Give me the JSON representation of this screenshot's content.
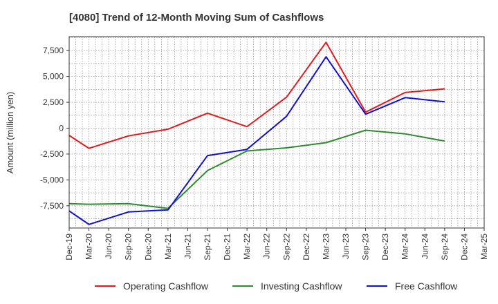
{
  "chart_data": {
    "type": "line",
    "title": "[4080]  Trend of 12-Month Moving Sum of Cashflows",
    "xlabel": "",
    "ylabel": "Amount (million yen)",
    "categories": [
      "Dec-19",
      "Mar-20",
      "Jun-20",
      "Sep-20",
      "Dec-20",
      "Mar-21",
      "Jun-21",
      "Sep-21",
      "Dec-21",
      "Mar-22",
      "Jun-22",
      "Sep-22",
      "Dec-22",
      "Mar-23",
      "Jun-23",
      "Sep-23",
      "Dec-23",
      "Mar-24",
      "Jun-24",
      "Sep-24",
      "Dec-24",
      "Mar-25"
    ],
    "ylim": [
      -9650,
      8850
    ],
    "yticks": [
      7500,
      5000,
      2500,
      0,
      -2500,
      -5000,
      -7500
    ],
    "ytick_labels": [
      "7,500",
      "5,000",
      "2,500",
      "0",
      "-2,500",
      "-5,000",
      "-7,500"
    ],
    "grid": true,
    "legend_position": "bottom",
    "series": [
      {
        "name": "Operating Cashflow",
        "color": "#e31a1c",
        "values": [
          -700,
          -1950,
          null,
          -750,
          null,
          -100,
          null,
          1450,
          null,
          150,
          null,
          3000,
          null,
          8300,
          null,
          1550,
          null,
          3450,
          null,
          3800,
          null,
          null
        ]
      },
      {
        "name": "Investing Cashflow",
        "color": "#2e8b2e",
        "values": [
          -7300,
          -7350,
          null,
          -7300,
          null,
          -7750,
          null,
          -4100,
          null,
          -2200,
          null,
          -1900,
          null,
          -1400,
          null,
          -200,
          null,
          -550,
          null,
          -1250,
          null,
          null
        ]
      },
      {
        "name": "Free Cashflow",
        "color": "#1010d0",
        "values": [
          -8000,
          -9300,
          null,
          -8100,
          null,
          -7900,
          null,
          -2650,
          null,
          -2050,
          null,
          1150,
          null,
          6900,
          null,
          1350,
          null,
          2950,
          null,
          2550,
          null,
          null
        ]
      }
    ]
  }
}
